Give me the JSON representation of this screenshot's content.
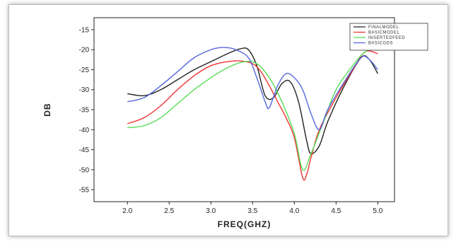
{
  "chart_data": {
    "type": "line",
    "title": "",
    "xlabel": "FREQ(GHZ)",
    "ylabel": "DB",
    "xlim": [
      1.6,
      5.2
    ],
    "ylim": [
      -58,
      -12
    ],
    "xticks": [
      2.0,
      2.5,
      3.0,
      3.5,
      4.0,
      4.5,
      5.0
    ],
    "xtick_labels": [
      "2.0",
      "2.5",
      "3.0",
      "3.5",
      "4.0",
      "4.5",
      "5.0"
    ],
    "yticks": [
      -15,
      -20,
      -25,
      -30,
      -35,
      -40,
      -45,
      -50,
      -55
    ],
    "ytick_labels": [
      "-15",
      "-20",
      "-25",
      "-30",
      "-35",
      "-40",
      "-45",
      "-50",
      "-55"
    ],
    "grid": false,
    "legend_position": "top-right",
    "series": [
      {
        "name": "FINALMODEL",
        "color": "#222222",
        "x": [
          2.0,
          2.2,
          2.4,
          2.6,
          2.8,
          3.0,
          3.2,
          3.35,
          3.45,
          3.55,
          3.65,
          3.75,
          3.85,
          3.95,
          4.05,
          4.15,
          4.2,
          4.3,
          4.4,
          4.6,
          4.8,
          4.9,
          5.0
        ],
        "y": [
          -31,
          -31.5,
          -30,
          -27.5,
          -25,
          -23,
          -21,
          -19.8,
          -20,
          -24,
          -31.5,
          -32,
          -28.5,
          -28,
          -33,
          -43,
          -46,
          -44,
          -38,
          -29,
          -22,
          -22.5,
          -26
        ]
      },
      {
        "name": "BASICMODEL",
        "color": "#ee3333",
        "x": [
          2.0,
          2.2,
          2.4,
          2.6,
          2.8,
          3.0,
          3.2,
          3.35,
          3.5,
          3.6,
          3.7,
          3.8,
          3.9,
          4.0,
          4.1,
          4.15,
          4.2,
          4.3,
          4.5,
          4.7,
          4.85,
          5.0
        ],
        "y": [
          -38.5,
          -37,
          -34,
          -30,
          -26.5,
          -24,
          -23,
          -22.8,
          -23.5,
          -25.5,
          -29,
          -33,
          -37,
          -42,
          -52,
          -51,
          -47,
          -40,
          -32,
          -25,
          -20.5,
          -21
        ]
      },
      {
        "name": "INSERTEDFEED",
        "color": "#55dd55",
        "x": [
          2.0,
          2.2,
          2.4,
          2.6,
          2.8,
          3.0,
          3.2,
          3.4,
          3.55,
          3.7,
          3.85,
          4.0,
          4.1,
          4.2,
          4.35,
          4.5,
          4.7,
          4.85,
          5.0
        ],
        "y": [
          -39.5,
          -39,
          -37,
          -33.5,
          -30,
          -27,
          -24.5,
          -23,
          -23.5,
          -27,
          -33,
          -41,
          -50,
          -46,
          -38,
          -30,
          -24,
          -20.5,
          -19.5
        ]
      },
      {
        "name": "BASICGDS",
        "color": "#5566dd",
        "x": [
          2.0,
          2.2,
          2.4,
          2.6,
          2.8,
          3.0,
          3.1,
          3.2,
          3.3,
          3.45,
          3.55,
          3.65,
          3.7,
          3.8,
          3.9,
          4.0,
          4.1,
          4.2,
          4.3,
          4.4,
          4.6,
          4.8,
          4.9,
          5.0
        ],
        "y": [
          -33,
          -32,
          -29,
          -25.5,
          -22,
          -20,
          -19.5,
          -19.5,
          -20,
          -22,
          -27,
          -33,
          -34.5,
          -29,
          -26,
          -27,
          -30,
          -36,
          -40,
          -35,
          -28,
          -22,
          -22.5,
          -25
        ]
      }
    ]
  }
}
